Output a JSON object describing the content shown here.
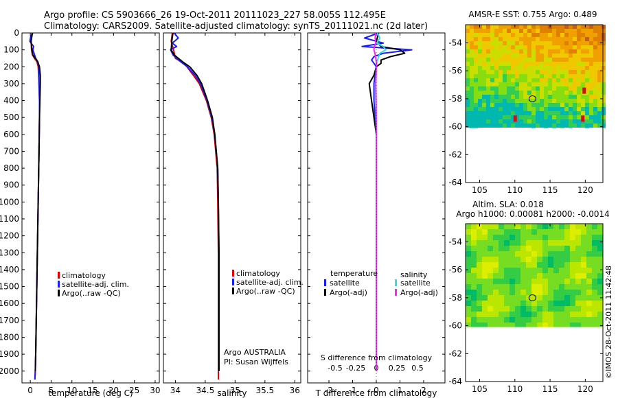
{
  "header": {
    "title_line1": "Argo profile: CS 5903666_26 19-Oct-2011 20111023_227 58.005S 112.495E",
    "title_line2": "Climatology: CARS2009. Satellite-adjusted climatology: synTS_20111021.nc (2d later)"
  },
  "colors": {
    "climatology": "#e00000",
    "satellite": "#1a1aff",
    "argo": "#000000",
    "satellite_s": "#30e0e0",
    "argo_s": "#ff20ff"
  },
  "chart_data": [
    {
      "type": "line",
      "id": "temperature",
      "xlabel": "temperature (deg C)",
      "ylabel": "",
      "xlim": [
        -2,
        31
      ],
      "ylim": [
        2070,
        0
      ],
      "x_ticks": [
        0,
        5,
        10,
        15,
        20,
        25,
        30
      ],
      "y_ticks": [
        0,
        100,
        200,
        300,
        400,
        500,
        600,
        700,
        800,
        900,
        1000,
        1100,
        1200,
        1300,
        1400,
        1500,
        1600,
        1700,
        1800,
        1900,
        2000
      ],
      "legend": [
        "climatology",
        "satellite-adj. clim.",
        "Argo(..raw -QC)"
      ],
      "series": [
        {
          "name": "climatology",
          "color": "#e00000",
          "depth": [
            0,
            50,
            100,
            130,
            150,
            170,
            200,
            300,
            400,
            500,
            700,
            1000,
            1300,
            1600,
            1900,
            2000,
            2050
          ],
          "values": [
            0.4,
            0.2,
            0.3,
            0.5,
            1.0,
            1.6,
            1.9,
            2.1,
            2.2,
            2.2,
            2.1,
            1.9,
            1.7,
            1.5,
            1.3,
            1.2,
            1.1
          ]
        },
        {
          "name": "satellite-adj. clim.",
          "color": "#1a1aff",
          "depth": [
            0,
            20,
            50,
            80,
            100,
            120,
            150,
            170,
            200,
            300,
            400,
            500,
            700,
            1000,
            1300,
            1600,
            1900,
            2000,
            2050
          ],
          "values": [
            0.6,
            0.1,
            -0.1,
            0.8,
            0.6,
            0.9,
            1.3,
            1.8,
            2.0,
            2.1,
            2.2,
            2.2,
            2.1,
            1.9,
            1.7,
            1.5,
            1.3,
            1.2,
            1.1
          ]
        },
        {
          "name": "Argo(..raw -QC)",
          "color": "#000000",
          "depth": [
            0,
            50,
            100,
            130,
            150,
            170,
            200,
            250,
            300,
            400,
            500,
            700,
            1000,
            1300,
            1600,
            1900,
            2000
          ],
          "values": [
            0.5,
            0.2,
            0.4,
            0.6,
            1.2,
            1.8,
            2.2,
            2.4,
            2.4,
            2.3,
            2.2,
            2.1,
            1.9,
            1.7,
            1.5,
            1.3,
            1.2
          ]
        }
      ]
    },
    {
      "type": "line",
      "id": "salinity",
      "xlabel": "salinity",
      "ylabel": "",
      "xlim": [
        33.8,
        36.1
      ],
      "ylim": [
        2070,
        0
      ],
      "x_ticks": [
        34,
        34.5,
        35,
        35.5,
        36
      ],
      "legend": [
        "climatology",
        "satellite-adj. clim.",
        "Argo(..raw -QC)"
      ],
      "annotation_line1": "Argo AUSTRALIA",
      "annotation_line2": "PI: Susan Wijffels",
      "series": [
        {
          "name": "climatology",
          "color": "#e00000",
          "depth": [
            0,
            50,
            100,
            150,
            180,
            250,
            300,
            400,
            500,
            600,
            800,
            1000,
            1300,
            1600,
            1900,
            2050
          ],
          "values": [
            33.95,
            33.93,
            33.97,
            34.0,
            34.15,
            34.3,
            34.4,
            34.52,
            34.6,
            34.65,
            34.7,
            34.71,
            34.72,
            34.72,
            34.72,
            34.72
          ]
        },
        {
          "name": "satellite-adj. clim.",
          "color": "#1a1aff",
          "depth": [
            0,
            30,
            60,
            80,
            100,
            130,
            160,
            200,
            250,
            300,
            400,
            500,
            600,
            800,
            1000,
            1300,
            1600,
            1900,
            2000
          ],
          "values": [
            33.98,
            34.05,
            33.95,
            34.02,
            33.92,
            33.96,
            34.05,
            34.2,
            34.33,
            34.42,
            34.53,
            34.61,
            34.66,
            34.71,
            34.72,
            34.73,
            34.73,
            34.73,
            34.73
          ]
        },
        {
          "name": "Argo(..raw -QC)",
          "color": "#000000",
          "depth": [
            0,
            50,
            100,
            130,
            170,
            200,
            250,
            300,
            400,
            500,
            600,
            800,
            1000,
            1300,
            1600,
            1900,
            2000
          ],
          "values": [
            33.96,
            33.94,
            33.93,
            33.98,
            34.12,
            34.24,
            34.36,
            34.44,
            34.54,
            34.62,
            34.66,
            34.71,
            34.72,
            34.73,
            34.73,
            34.73,
            34.73
          ]
        }
      ]
    },
    {
      "type": "line",
      "id": "differences",
      "xlabel": "T difference from climatology",
      "top_label": "S difference from climatology",
      "xlim": [
        -2.9,
        2.9
      ],
      "ylim": [
        2070,
        0
      ],
      "x_ticks": [
        -2,
        -1,
        0,
        1,
        2
      ],
      "s_ticks": [
        -0.5,
        -0.25,
        0,
        0.25,
        0.5
      ],
      "legend_temp_title": "temperature",
      "legend_sal_title": "salinity",
      "legend_entries": [
        "satellite",
        "Argo(-adj)",
        "satellite",
        "Argo(-adj)"
      ],
      "series": [
        {
          "name": "T satellite",
          "color": "#1a1aff",
          "depth": [
            0,
            30,
            60,
            80,
            100,
            120,
            140,
            160,
            180,
            200,
            300,
            400,
            600,
            1000,
            1500,
            2000
          ],
          "values": [
            0.1,
            -0.5,
            0.3,
            -0.6,
            1.5,
            0.3,
            -0.1,
            -0.2,
            -0.1,
            0.0,
            -0.1,
            -0.1,
            0.0,
            0.0,
            0.0,
            0.0
          ]
        },
        {
          "name": "T Argo(-adj)",
          "color": "#000000",
          "depth": [
            0,
            50,
            80,
            100,
            120,
            140,
            160,
            180,
            200,
            250,
            300,
            400,
            500,
            600,
            800,
            1000,
            1500,
            2000
          ],
          "values": [
            0.1,
            0.0,
            0.2,
            1.0,
            1.2,
            0.6,
            0.2,
            0.2,
            0.0,
            -0.1,
            -0.3,
            -0.2,
            -0.1,
            0.0,
            0.0,
            0.0,
            0.0,
            0.0
          ]
        },
        {
          "name": "S satellite",
          "color": "#30e0e0",
          "depth": [
            0,
            30,
            60,
            80,
            100,
            120,
            160,
            200,
            300,
            400,
            600,
            1000,
            1500,
            2000
          ],
          "values": [
            0.05,
            0.15,
            0.02,
            0.3,
            0.4,
            0.15,
            0.05,
            0.0,
            -0.03,
            -0.02,
            0.0,
            0.0,
            0.0,
            0.0
          ]
        },
        {
          "name": "S Argo(-adj)",
          "color": "#ff20ff",
          "depth": [
            0,
            30,
            60,
            80,
            100,
            130,
            170,
            200,
            300,
            400,
            600,
            1000,
            1500,
            2000
          ],
          "values": [
            -0.02,
            -0.05,
            -0.02,
            -0.08,
            -0.1,
            -0.04,
            0.0,
            0.0,
            -0.02,
            -0.01,
            0.0,
            0.0,
            0.0,
            0.0
          ]
        }
      ]
    },
    {
      "type": "heatmap",
      "id": "sst_map",
      "title": "AMSR-E SST: 0.755 Argo: 0.489",
      "xlim": [
        103,
        122.5
      ],
      "ylim": [
        -64,
        -52.7
      ],
      "x_ticks": [
        105,
        110,
        115,
        120
      ],
      "y_ticks": [
        -54,
        -56,
        -58,
        -60,
        -62,
        -64
      ],
      "data_bottom_lat": -60.1,
      "argo_marker": [
        112.495,
        -58.005
      ]
    },
    {
      "type": "heatmap",
      "id": "sla_map",
      "title_line1": "Altim. SLA: 0.018",
      "title_line2": "Argo h1000: 0.00081 h2000: -0.0014",
      "xlim": [
        103,
        122.5
      ],
      "ylim": [
        -64,
        -52.7
      ],
      "x_ticks": [
        105,
        110,
        115,
        120
      ],
      "y_ticks": [
        -54,
        -56,
        -58,
        -60,
        -62,
        -64
      ],
      "data_bottom_lat": -60.1,
      "argo_marker": [
        112.495,
        -58.005
      ]
    }
  ],
  "footer": {
    "credit": "©IMOS 28-Oct-2011 11:42:48"
  }
}
